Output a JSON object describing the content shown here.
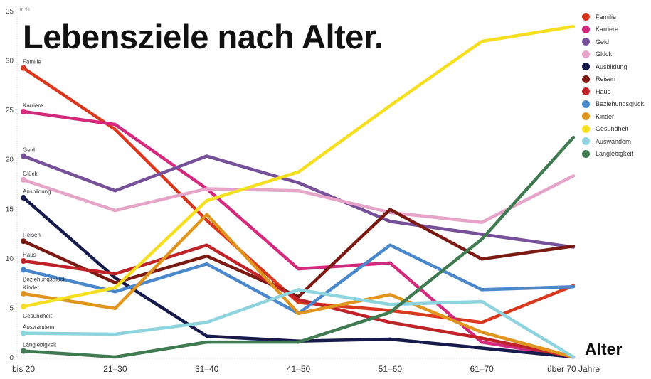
{
  "chart_data": {
    "type": "line",
    "title": "Lebensziele nach Alter.",
    "ylabel": "in %",
    "xlabel": "Alter",
    "ylim": [
      0,
      35
    ],
    "yticks": [
      0,
      5,
      10,
      15,
      20,
      25,
      30,
      35
    ],
    "grid": false,
    "legend": "right",
    "categories": [
      "bis 20",
      "21–30",
      "31–40",
      "41–50",
      "51–60",
      "61–70",
      "über 70 Jahre"
    ],
    "series": [
      {
        "name": "Familie",
        "color": "#d9381e",
        "values": [
          29.2,
          23.0,
          13.8,
          5.5,
          4.7,
          3.5,
          7.2
        ]
      },
      {
        "name": "Karriere",
        "color": "#d42a7d",
        "values": [
          24.8,
          23.5,
          17.0,
          8.9,
          9.5,
          1.5,
          0
        ]
      },
      {
        "name": "Geld",
        "color": "#77509a",
        "values": [
          20.3,
          16.8,
          20.3,
          17.6,
          13.7,
          12.4,
          11.1
        ]
      },
      {
        "name": "Glück",
        "color": "#e6a5c8",
        "values": [
          17.9,
          14.8,
          17.0,
          16.8,
          14.6,
          13.6,
          18.3
        ]
      },
      {
        "name": "Ausbildung",
        "color": "#161b4c",
        "values": [
          16.1,
          8.0,
          2.1,
          1.6,
          1.8,
          0.9,
          0
        ]
      },
      {
        "name": "Reisen",
        "color": "#7a1a12",
        "values": [
          11.7,
          7.5,
          10.2,
          6.1,
          14.9,
          9.9,
          11.2
        ]
      },
      {
        "name": "Haus",
        "color": "#bf2227",
        "values": [
          9.7,
          8.4,
          11.3,
          5.8,
          3.5,
          1.9,
          0
        ]
      },
      {
        "name": "Beziehungsglück",
        "color": "#4a88cb",
        "values": [
          8.8,
          6.6,
          9.4,
          4.4,
          11.3,
          6.8,
          7.1
        ]
      },
      {
        "name": "Kinder",
        "color": "#e0951f",
        "values": [
          6.4,
          4.9,
          14.4,
          4.4,
          6.3,
          2.5,
          0
        ]
      },
      {
        "name": "Gesundheit",
        "color": "#f6df20",
        "values": [
          5.1,
          7.0,
          15.8,
          18.7,
          25.4,
          31.9,
          33.4
        ]
      },
      {
        "name": "Auswandern",
        "color": "#8ed4de",
        "values": [
          2.4,
          2.3,
          3.5,
          6.8,
          5.3,
          5.6,
          0
        ]
      },
      {
        "name": "Langlebigkeit",
        "color": "#3f7a50",
        "values": [
          0.6,
          0,
          1.5,
          1.5,
          4.5,
          11.9,
          22.2
        ]
      }
    ]
  }
}
